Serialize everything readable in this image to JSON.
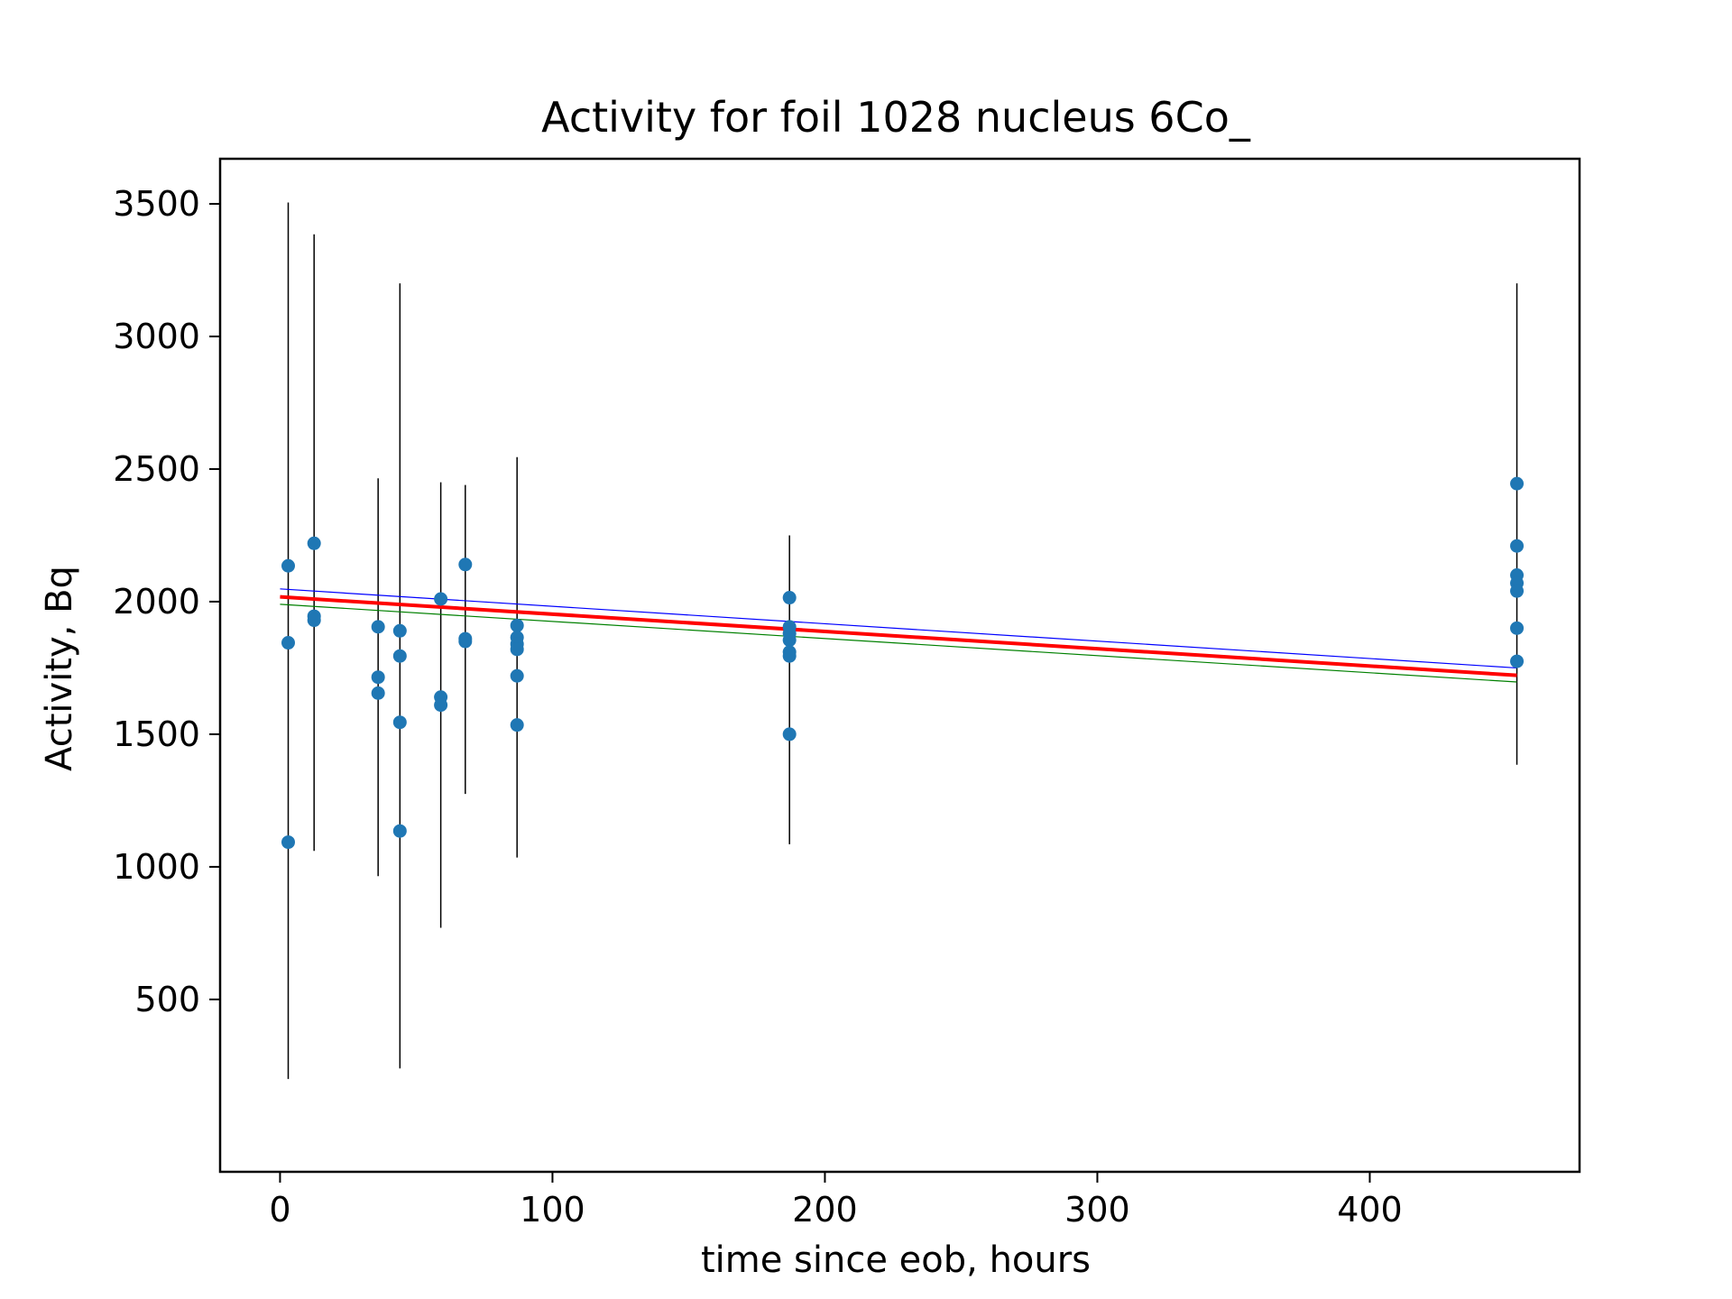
{
  "chart_data": {
    "type": "scatter",
    "title": "Activity for foil 1028 nucleus 6Co_",
    "xlabel": "time since eob, hours",
    "ylabel": "Activity, Bq",
    "xlim": [
      -22,
      477
    ],
    "ylim": [
      -150,
      3670
    ],
    "xticks": [
      0,
      100,
      200,
      300,
      400
    ],
    "yticks": [
      500,
      1000,
      1500,
      2000,
      2500,
      3000,
      3500
    ],
    "grid": false,
    "point_color": "#1f77b4",
    "errorbar_color": "#000000",
    "points": [
      {
        "x": 3,
        "y": 2135,
        "yerr": null
      },
      {
        "x": 3,
        "y": 1845,
        "yerr": null
      },
      {
        "x": 3,
        "y": 1093,
        "yerr": null
      },
      {
        "x": 12.5,
        "y": 2220,
        "yerr": null
      },
      {
        "x": 12.5,
        "y": 1945,
        "yerr": null
      },
      {
        "x": 12.5,
        "y": 1930,
        "yerr": null
      },
      {
        "x": 36,
        "y": 1905,
        "yerr": null
      },
      {
        "x": 36,
        "y": 1715,
        "yerr": null
      },
      {
        "x": 36,
        "y": 1655,
        "yerr": null
      },
      {
        "x": 44,
        "y": 1890,
        "yerr": null
      },
      {
        "x": 44,
        "y": 1795,
        "yerr": null
      },
      {
        "x": 44,
        "y": 1545,
        "yerr": null
      },
      {
        "x": 44,
        "y": 1135,
        "yerr": null
      },
      {
        "x": 59,
        "y": 2010,
        "yerr": null
      },
      {
        "x": 59,
        "y": 1640,
        "yerr": null
      },
      {
        "x": 59,
        "y": 1610,
        "yerr": null
      },
      {
        "x": 68,
        "y": 2140,
        "yerr": null
      },
      {
        "x": 68,
        "y": 1860,
        "yerr": null
      },
      {
        "x": 68,
        "y": 1850,
        "yerr": null
      },
      {
        "x": 87,
        "y": 1910,
        "yerr": null
      },
      {
        "x": 87,
        "y": 1865,
        "yerr": null
      },
      {
        "x": 87,
        "y": 1840,
        "yerr": null
      },
      {
        "x": 87,
        "y": 1820,
        "yerr": null
      },
      {
        "x": 87,
        "y": 1720,
        "yerr": null
      },
      {
        "x": 87,
        "y": 1535,
        "yerr": null
      },
      {
        "x": 187,
        "y": 2015,
        "yerr": null
      },
      {
        "x": 187,
        "y": 1905,
        "yerr": null
      },
      {
        "x": 187,
        "y": 1880,
        "yerr": null
      },
      {
        "x": 187,
        "y": 1855,
        "yerr": null
      },
      {
        "x": 187,
        "y": 1810,
        "yerr": null
      },
      {
        "x": 187,
        "y": 1795,
        "yerr": null
      },
      {
        "x": 187,
        "y": 1500,
        "yerr": null
      },
      {
        "x": 454,
        "y": 2445,
        "yerr": null
      },
      {
        "x": 454,
        "y": 2210,
        "yerr": null
      },
      {
        "x": 454,
        "y": 2100,
        "yerr": null
      },
      {
        "x": 454,
        "y": 2070,
        "yerr": null
      },
      {
        "x": 454,
        "y": 2040,
        "yerr": null
      },
      {
        "x": 454,
        "y": 1900,
        "yerr": null
      },
      {
        "x": 454,
        "y": 1775,
        "yerr": null
      }
    ],
    "errorbars": [
      {
        "x": 3,
        "ymin": 200,
        "ymax": 3505
      },
      {
        "x": 12.5,
        "ymin": 1060,
        "ymax": 3385
      },
      {
        "x": 36,
        "ymin": 965,
        "ymax": 2465
      },
      {
        "x": 44,
        "ymin": 240,
        "ymax": 3200
      },
      {
        "x": 59,
        "ymin": 770,
        "ymax": 2450
      },
      {
        "x": 68,
        "ymin": 1275,
        "ymax": 2440
      },
      {
        "x": 87,
        "ymin": 1035,
        "ymax": 2545
      },
      {
        "x": 187,
        "ymin": 1085,
        "ymax": 2250
      },
      {
        "x": 454,
        "ymin": 1385,
        "ymax": 3200
      }
    ],
    "lines": [
      {
        "color": "#ff0000",
        "width": 4,
        "x": [
          0,
          454
        ],
        "y": [
          2018,
          1722
        ]
      },
      {
        "color": "#0000ff",
        "width": 1.2,
        "x": [
          0,
          454
        ],
        "y": [
          2048,
          1750
        ]
      },
      {
        "color": "#008000",
        "width": 1.2,
        "x": [
          0,
          454
        ],
        "y": [
          1990,
          1697
        ]
      }
    ]
  }
}
